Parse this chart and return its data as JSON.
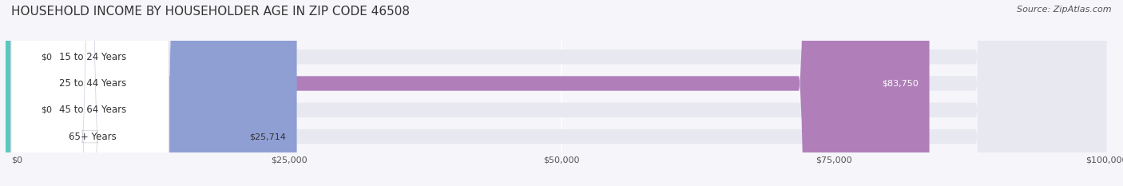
{
  "title": "HOUSEHOLD INCOME BY HOUSEHOLDER AGE IN ZIP CODE 46508",
  "source": "Source: ZipAtlas.com",
  "categories": [
    "15 to 24 Years",
    "25 to 44 Years",
    "45 to 64 Years",
    "65+ Years"
  ],
  "values": [
    0,
    83750,
    0,
    25714
  ],
  "bar_colors": [
    "#8ab4d4",
    "#b07fba",
    "#5bc8c0",
    "#8f9fd4"
  ],
  "bar_bg_color": "#e8e8f0",
  "label_bg_color": "#ffffff",
  "xlim": [
    0,
    100000
  ],
  "xticks": [
    0,
    25000,
    50000,
    75000,
    100000
  ],
  "xtick_labels": [
    "$0",
    "$25,000",
    "$50,000",
    "$75,000",
    "$100,000"
  ],
  "value_labels": [
    "$0",
    "$83,750",
    "$0",
    "$25,714"
  ],
  "background_color": "#f5f5fa",
  "grid_color": "#ffffff",
  "title_fontsize": 11,
  "source_fontsize": 8,
  "label_fontsize": 8.5,
  "value_fontsize": 8
}
